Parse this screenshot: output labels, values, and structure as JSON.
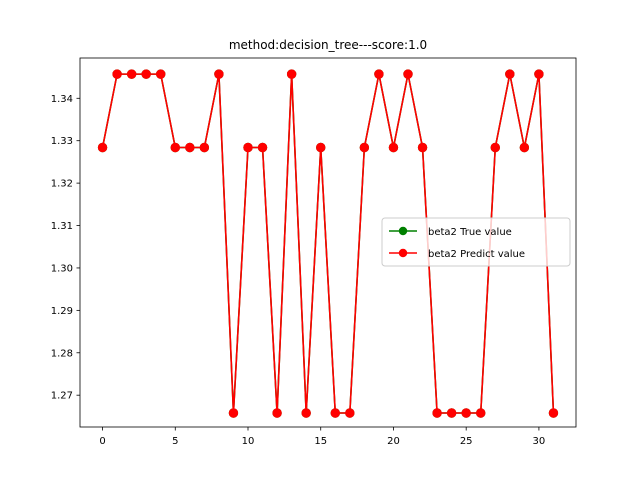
{
  "chart_data": {
    "type": "line",
    "title": "method:decision_tree---score:1.0",
    "xlabel": "",
    "ylabel": "",
    "xlim": [
      -1.55,
      32.55
    ],
    "ylim": [
      1.2625,
      1.3495
    ],
    "x_ticks": [
      0,
      5,
      10,
      15,
      20,
      25,
      30
    ],
    "y_ticks": [
      1.27,
      1.28,
      1.29,
      1.3,
      1.31,
      1.32,
      1.33,
      1.34
    ],
    "y_tick_labels": [
      "1.27",
      "1.28",
      "1.29",
      "1.30",
      "1.31",
      "1.32",
      "1.33",
      "1.34"
    ],
    "x": [
      0,
      1,
      2,
      3,
      4,
      5,
      6,
      7,
      8,
      9,
      10,
      11,
      12,
      13,
      14,
      15,
      16,
      17,
      18,
      19,
      20,
      21,
      22,
      23,
      24,
      25,
      26,
      27,
      28,
      29,
      30,
      31
    ],
    "grid": false,
    "legend_position": "center-right",
    "series": [
      {
        "name": "beta2 True value",
        "color": "#008000",
        "marker": "circle",
        "values": [
          1.3284,
          1.3457,
          1.3457,
          1.3457,
          1.3457,
          1.3284,
          1.3284,
          1.3284,
          1.3457,
          1.2658,
          1.3284,
          1.3284,
          1.2658,
          1.3457,
          1.2658,
          1.3284,
          1.2658,
          1.2658,
          1.3284,
          1.3457,
          1.3284,
          1.3457,
          1.3284,
          1.2658,
          1.2658,
          1.2658,
          1.2658,
          1.3284,
          1.3457,
          1.3284,
          1.3457,
          1.2658
        ]
      },
      {
        "name": "beta2 Predict value",
        "color": "#ff0000",
        "marker": "circle",
        "values": [
          1.3284,
          1.3457,
          1.3457,
          1.3457,
          1.3457,
          1.3284,
          1.3284,
          1.3284,
          1.3457,
          1.2658,
          1.3284,
          1.3284,
          1.2658,
          1.3457,
          1.2658,
          1.3284,
          1.2658,
          1.2658,
          1.3284,
          1.3457,
          1.3284,
          1.3457,
          1.3284,
          1.2658,
          1.2658,
          1.2658,
          1.2658,
          1.3284,
          1.3457,
          1.3284,
          1.3457,
          1.2658
        ]
      }
    ]
  }
}
